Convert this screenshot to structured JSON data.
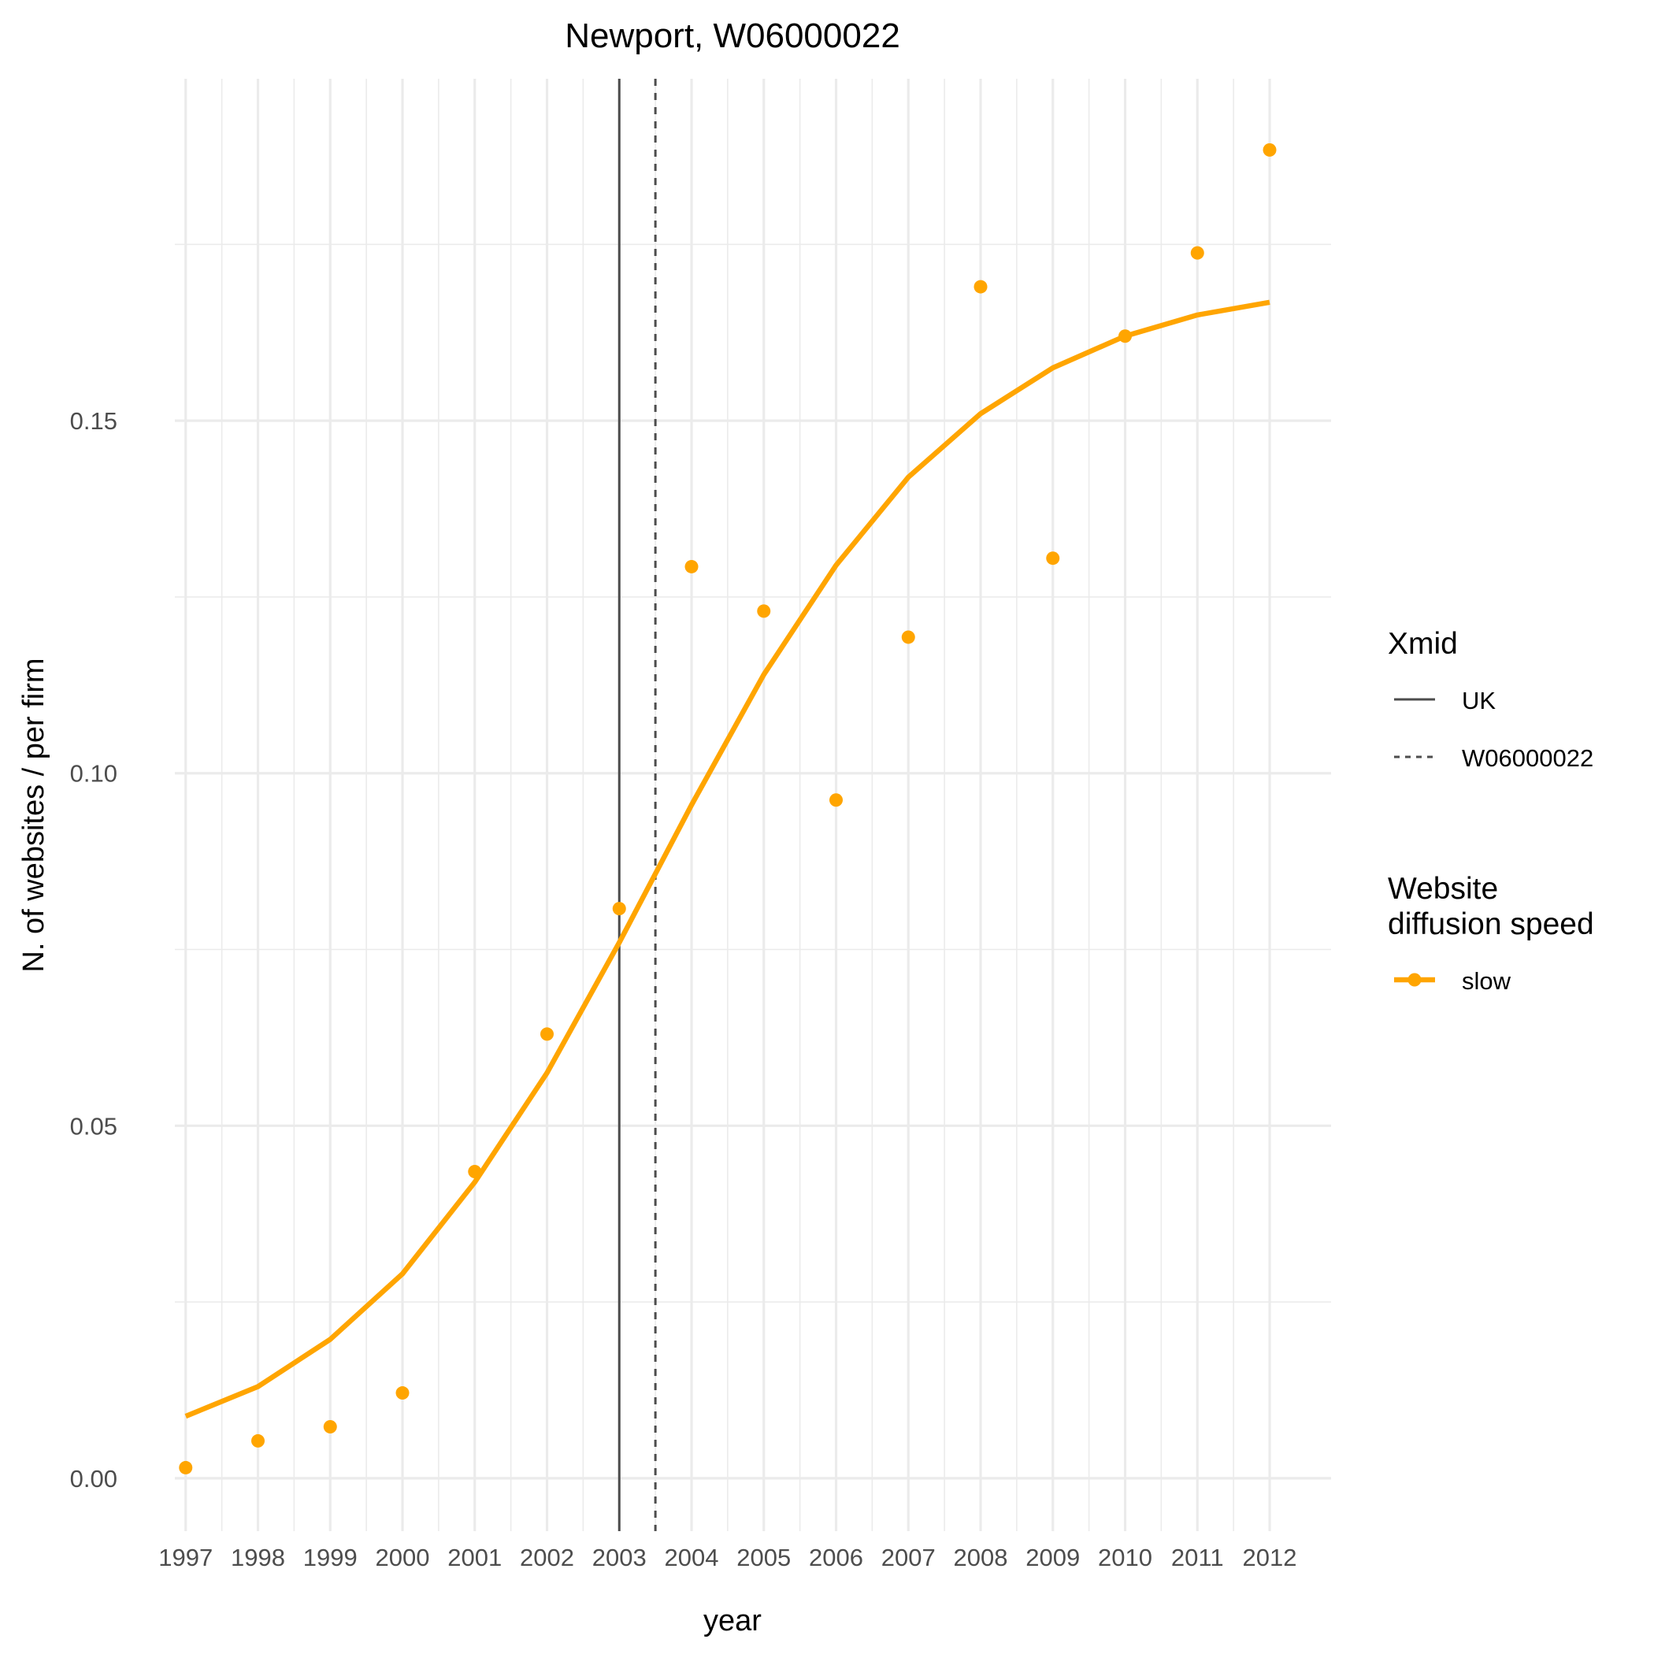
{
  "chart_data": {
    "type": "line",
    "title": "Newport, W06000022",
    "xlabel": "year",
    "ylabel": "N. of websites / per firm",
    "x": [
      1997,
      1998,
      1999,
      2000,
      2001,
      2002,
      2003,
      2004,
      2005,
      2006,
      2007,
      2008,
      2009,
      2010,
      2011,
      2012
    ],
    "xlim": [
      1996.85,
      2012.85
    ],
    "ylim": [
      -0.0075,
      0.1985
    ],
    "yticks": [
      0.0,
      0.05,
      0.1,
      0.15
    ],
    "ytick_labels": [
      "0.00",
      "0.05",
      "0.10",
      "0.15"
    ],
    "grid": true,
    "legend_position": "right",
    "series": [
      {
        "name": "slow",
        "kind": "points",
        "color": "#FFA500",
        "values": [
          0.0015,
          0.0053,
          0.0073,
          0.0121,
          0.0435,
          0.063,
          0.0808,
          0.1293,
          0.123,
          0.0962,
          0.1193,
          0.169,
          0.1305,
          0.162,
          0.1738,
          0.1884
        ]
      },
      {
        "name": "slow",
        "kind": "fitted-line",
        "color": "#FFA500",
        "values": [
          0.0088,
          0.013,
          0.0197,
          0.029,
          0.042,
          0.0575,
          0.076,
          0.0955,
          0.114,
          0.1295,
          0.142,
          0.151,
          0.1575,
          0.162,
          0.165,
          0.1668
        ]
      }
    ],
    "reference_lines": [
      {
        "name": "UK",
        "x": 2003.0,
        "style": "solid",
        "color": "#4D4D4D"
      },
      {
        "name": "W06000022",
        "x": 2003.5,
        "style": "dashed",
        "color": "#4D4D4D"
      }
    ],
    "legends": [
      {
        "title": [
          "Xmid"
        ],
        "entries": [
          {
            "label": "UK",
            "kind": "solid"
          },
          {
            "label": "W06000022",
            "kind": "dashed"
          }
        ]
      },
      {
        "title": [
          "Website",
          "diffusion speed"
        ],
        "entries": [
          {
            "label": "slow",
            "kind": "line-point",
            "color": "#FFA500"
          }
        ]
      }
    ]
  }
}
